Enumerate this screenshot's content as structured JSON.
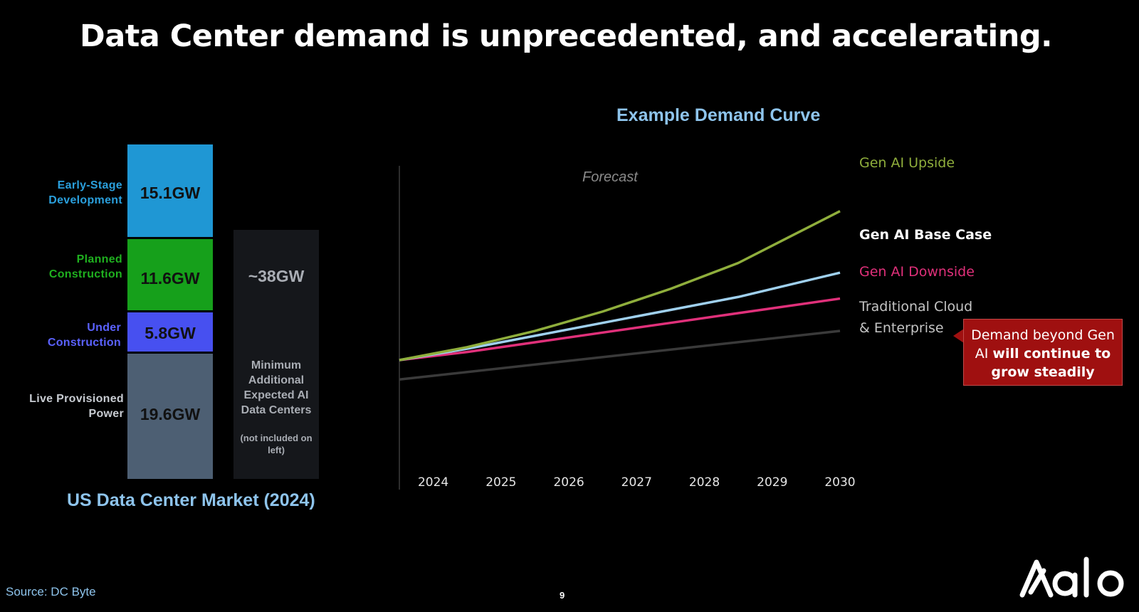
{
  "title": "Data Center demand is unprecedented, and accelerating.",
  "market": {
    "title": "US Data Center Market (2024)",
    "segments": [
      {
        "label": "Early-Stage Development",
        "value_label": "15.1GW",
        "value": 15.1,
        "color": "#1f97d4",
        "label_color": "#2a9fdc"
      },
      {
        "label": "Planned Construction",
        "value_label": "11.6GW",
        "value": 11.6,
        "color": "#16a01b",
        "label_color": "#1fb01f"
      },
      {
        "label": "Under Construction",
        "value_label": "5.8GW",
        "value": 5.8,
        "color": "#4750f0",
        "label_color": "#5b62ff"
      },
      {
        "label": "Live Provisioned Power",
        "value_label": "19.6GW",
        "value": 19.6,
        "color": "#4d5f73",
        "label_color": "#c8ccd2"
      }
    ],
    "additional": {
      "value_label": "~38GW",
      "description": "Minimum Additional Expected AI Data Centers",
      "note": "(not included on left)"
    }
  },
  "chart_data": [
    {
      "type": "bar",
      "stacked": true,
      "title": "US Data Center Market (2024)",
      "categories": [
        "US Data Center Market (2024)"
      ],
      "series": [
        {
          "name": "Live Provisioned Power",
          "values": [
            19.6
          ]
        },
        {
          "name": "Under Construction",
          "values": [
            5.8
          ]
        },
        {
          "name": "Planned Construction",
          "values": [
            11.6
          ]
        },
        {
          "name": "Early-Stage Development",
          "values": [
            15.1
          ]
        }
      ],
      "unit": "GW"
    },
    {
      "type": "line",
      "title": "Example Demand Curve",
      "annotation": "Forecast",
      "x": [
        "2024",
        "2025",
        "2026",
        "2027",
        "2028",
        "2029",
        "2030"
      ],
      "x_domain": [
        2023.5,
        2030
      ],
      "ylim": [
        0,
        100
      ],
      "series": [
        {
          "name": "Gen AI Upside",
          "color": "#8fae3c",
          "bold": false,
          "points": [
            [
              2023.5,
              40
            ],
            [
              2024.5,
              44
            ],
            [
              2025.5,
              49
            ],
            [
              2026.5,
              55
            ],
            [
              2027.5,
              62
            ],
            [
              2028.5,
              70
            ],
            [
              2029.25,
              78
            ],
            [
              2030,
              86
            ]
          ]
        },
        {
          "name": "Gen AI Base Case",
          "color": "#9fd0ee",
          "bold": true,
          "points": [
            [
              2023.5,
              40
            ],
            [
              2024.5,
              43.5
            ],
            [
              2025.5,
              47.5
            ],
            [
              2026.5,
              51.5
            ],
            [
              2027.5,
              55.5
            ],
            [
              2028.5,
              59.5
            ],
            [
              2030,
              67
            ]
          ]
        },
        {
          "name": "Gen AI Downside",
          "color": "#e0307a",
          "bold": false,
          "points": [
            [
              2023.5,
              40
            ],
            [
              2024.5,
              42.5
            ],
            [
              2025.5,
              45.5
            ],
            [
              2026.5,
              48.5
            ],
            [
              2027.5,
              51.5
            ],
            [
              2028.5,
              54.5
            ],
            [
              2030,
              59
            ]
          ]
        },
        {
          "name": "Traditional Cloud\n& Enterprise",
          "color": "#3a3a3a",
          "bold": false,
          "points": [
            [
              2023.5,
              34
            ],
            [
              2030,
              49
            ]
          ]
        }
      ]
    }
  ],
  "demand_curve": {
    "title": "Example Demand Curve",
    "forecast_label": "Forecast",
    "legend": [
      {
        "line1": "Gen AI Upside",
        "color": "#8fae3c"
      },
      {
        "line1": "Gen AI Base Case",
        "color": "#ffffff"
      },
      {
        "line1": "Gen AI Downside",
        "color": "#e0307a"
      },
      {
        "line1": "Traditional Cloud",
        "line2": "& Enterprise",
        "color": "#c4c4c4"
      }
    ]
  },
  "callout": {
    "part1": "Demand beyond Gen AI ",
    "emphasis": "will continue to grow steadily"
  },
  "footer": {
    "source": "Source:  DC Byte",
    "page": "9",
    "logo": "Aalo"
  }
}
